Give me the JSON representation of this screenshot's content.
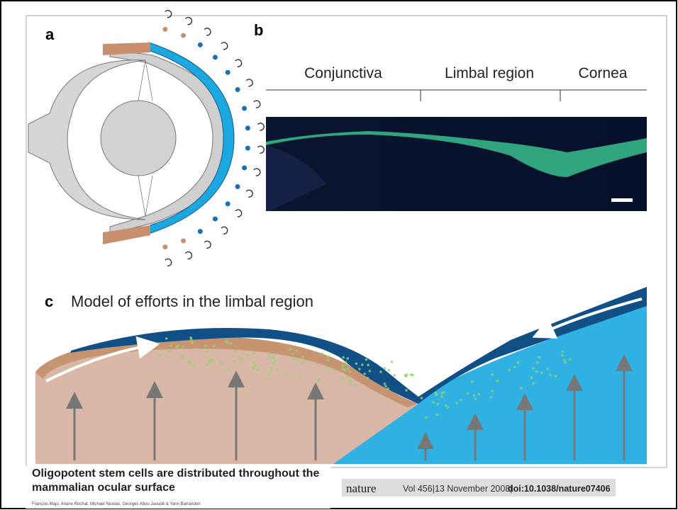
{
  "panels": {
    "a": {
      "label": "a"
    },
    "b": {
      "label": "b",
      "regions": [
        "Conjunctiva",
        "Limbal region",
        "Cornea"
      ]
    },
    "c": {
      "label": "c",
      "title": "Model of efforts in the limbal region"
    }
  },
  "article": {
    "title_lines": [
      "Oligopotent stem cells are distributed throughout the",
      "mammalian ocular surface"
    ],
    "journal": "nature",
    "citation": "Vol 456|13 November 2008|",
    "doi": "doi:10.1038/nature07406",
    "authors": "François Majo, Ariane Rochat, Michael Nicolas, Georges Abou Jaoudé & Yann Barrandon"
  }
}
